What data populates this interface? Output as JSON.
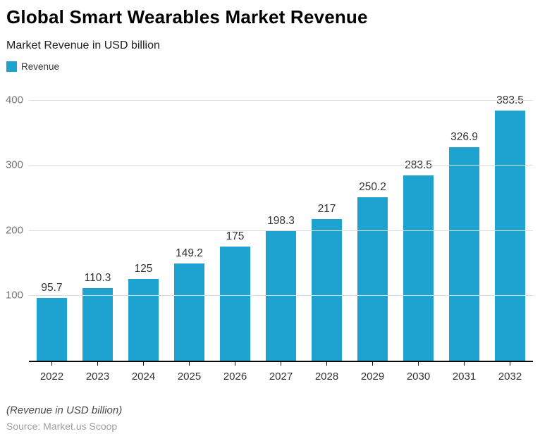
{
  "header": {
    "title": "Global Smart Wearables Market Revenue",
    "subtitle": "Market Revenue in USD billion"
  },
  "legend": {
    "label": "Revenue"
  },
  "colors": {
    "bar": "#1ea2cf",
    "grid": "#dcdcdc",
    "axis": "#0a0a0a"
  },
  "chart_data": {
    "type": "bar",
    "title": "Global Smart Wearables Market Revenue",
    "subtitle": "Market Revenue in USD billion",
    "categories": [
      "2022",
      "2023",
      "2024",
      "2025",
      "2026",
      "2027",
      "2028",
      "2029",
      "2030",
      "2031",
      "2032"
    ],
    "values": [
      95.7,
      110.3,
      125,
      149.2,
      175,
      198.3,
      217,
      250.2,
      283.5,
      326.9,
      383.5
    ],
    "series_name": "Revenue",
    "xlabel": "",
    "ylabel": "",
    "ylim": [
      0,
      400
    ],
    "yticks": [
      100,
      200,
      300,
      400
    ],
    "grid": true,
    "legend_position": "top-left",
    "bar_color": "#1ea2cf"
  },
  "footer": {
    "note": "(Revenue in USD billion)",
    "source": "Source: Market.us Scoop"
  }
}
